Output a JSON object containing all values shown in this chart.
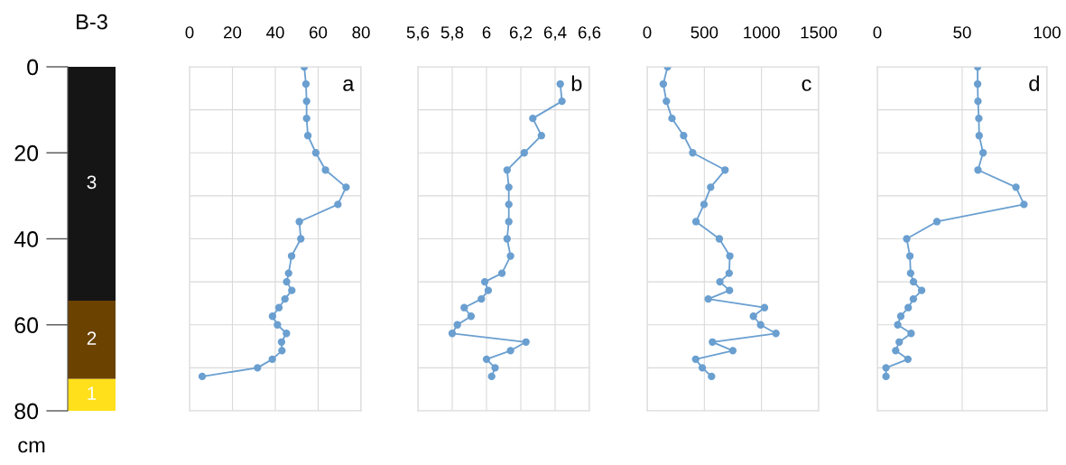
{
  "chart_data": [
    {
      "type": "bar",
      "stacked": true,
      "title": "B-3",
      "ylabel": "cm",
      "categories": [
        null
      ],
      "series": [
        {
          "name": "3",
          "color": "#151515",
          "values": [
            54.4
          ]
        },
        {
          "name": "2",
          "color": "#6b4200",
          "values": [
            18.2
          ]
        },
        {
          "name": "1",
          "color": "#ffe01a",
          "values": [
            7.4
          ]
        }
      ],
      "ylim": [
        80,
        0
      ],
      "yticks": [
        0,
        20,
        40,
        60,
        80
      ],
      "tick_labels": "y",
      "grid": false
    },
    {
      "type": "line",
      "title": "a",
      "marker": "circle",
      "grid": true,
      "tick_labels": "x",
      "xlim": [
        0,
        80
      ],
      "xticks": [
        0,
        20,
        40,
        60,
        80
      ],
      "ylim": [
        80,
        0
      ],
      "yticks": [
        {
          "value": 0,
          "label": null
        },
        {
          "value": 10,
          "label": null
        },
        {
          "value": 20,
          "label": null
        },
        {
          "value": 30,
          "label": null
        },
        {
          "value": 40,
          "label": null
        },
        {
          "value": 50,
          "label": null
        },
        {
          "value": 60,
          "label": null
        },
        {
          "value": 70,
          "label": null
        },
        {
          "value": 80,
          "label": null
        }
      ],
      "series": [
        {
          "color": "#6a9fd0",
          "x": [
            53.5,
            54.3,
            54.6,
            54.6,
            55.2,
            58.9,
            63.4,
            73,
            69.2,
            51.2,
            51.9,
            47.6,
            46.2,
            45.3,
            47.7,
            44.5,
            41.7,
            38.7,
            41,
            45.2,
            42.9,
            43.1,
            38.6,
            31.7,
            5.9
          ],
          "values": [
            0,
            4,
            8,
            12,
            16,
            20,
            24,
            28,
            32,
            36,
            40,
            44,
            48,
            50,
            52,
            54,
            56,
            58,
            60,
            62,
            64,
            66,
            68,
            70,
            72
          ]
        }
      ]
    },
    {
      "type": "line",
      "title": "b",
      "marker": "circle",
      "grid": true,
      "tick_labels": "x",
      "xlim": [
        5.6,
        6.6
      ],
      "xticks": [
        {
          "value": 5.6,
          "label": "5,6"
        },
        {
          "value": 5.8,
          "label": "5,8"
        },
        {
          "value": 6.0,
          "label": "6"
        },
        {
          "value": 6.2,
          "label": "6,2"
        },
        {
          "value": 6.4,
          "label": "6,4"
        },
        {
          "value": 6.6,
          "label": "6,6"
        }
      ],
      "ylim": [
        80,
        0
      ],
      "yticks": [
        {
          "value": 0,
          "label": null
        },
        {
          "value": 10,
          "label": null
        },
        {
          "value": 20,
          "label": null
        },
        {
          "value": 30,
          "label": null
        },
        {
          "value": 40,
          "label": null
        },
        {
          "value": 50,
          "label": null
        },
        {
          "value": 60,
          "label": null
        },
        {
          "value": 70,
          "label": null
        },
        {
          "value": 80,
          "label": null
        }
      ],
      "series": [
        {
          "color": "#6a9fd0",
          "x": [
            6.43,
            6.44,
            6.27,
            6.32,
            6.22,
            6.12,
            6.13,
            6.13,
            6.13,
            6.12,
            6.14,
            6.09,
            5.99,
            6.01,
            5.97,
            5.87,
            5.91,
            5.83,
            5.8,
            6.23,
            6.14,
            6.0,
            6.05,
            6.03
          ],
          "values": [
            4,
            8,
            12,
            16,
            20,
            24,
            28,
            32,
            36,
            40,
            44,
            48,
            50,
            52,
            54,
            56,
            58,
            60,
            62,
            64,
            66,
            68,
            70,
            72
          ]
        }
      ]
    },
    {
      "type": "line",
      "title": "c",
      "marker": "circle",
      "grid": true,
      "tick_labels": "x",
      "xlim": [
        0,
        1500
      ],
      "xticks": [
        0,
        500,
        1000,
        1500
      ],
      "ylim": [
        80,
        0
      ],
      "yticks": [
        {
          "value": 0,
          "label": null
        },
        {
          "value": 10,
          "label": null
        },
        {
          "value": 20,
          "label": null
        },
        {
          "value": 30,
          "label": null
        },
        {
          "value": 40,
          "label": null
        },
        {
          "value": 50,
          "label": null
        },
        {
          "value": 60,
          "label": null
        },
        {
          "value": 70,
          "label": null
        },
        {
          "value": 80,
          "label": null
        }
      ],
      "series": [
        {
          "color": "#6a9fd0",
          "x": [
            178,
            141,
            168,
            217,
            319,
            398,
            681,
            555,
            497,
            427,
            631,
            723,
            717,
            636,
            720,
            534,
            1026,
            929,
            992,
            1126,
            571,
            749,
            424,
            482,
            563
          ],
          "values": [
            0,
            4,
            8,
            12,
            16,
            20,
            24,
            28,
            32,
            36,
            40,
            44,
            48,
            50,
            52,
            54,
            56,
            58,
            60,
            62,
            64,
            66,
            68,
            70,
            72
          ]
        }
      ]
    },
    {
      "type": "line",
      "title": "d",
      "marker": "circle",
      "grid": true,
      "tick_labels": "x",
      "xlim": [
        0,
        100
      ],
      "xticks": [
        0,
        50,
        100
      ],
      "ylim": [
        80,
        0
      ],
      "yticks": [
        {
          "value": 0,
          "label": null
        },
        {
          "value": 10,
          "label": null
        },
        {
          "value": 20,
          "label": null
        },
        {
          "value": 30,
          "label": null
        },
        {
          "value": 40,
          "label": null
        },
        {
          "value": 50,
          "label": null
        },
        {
          "value": 60,
          "label": null
        },
        {
          "value": 70,
          "label": null
        },
        {
          "value": 80,
          "label": null
        }
      ],
      "series": [
        {
          "color": "#6a9fd0",
          "x": [
            59.1,
            59.1,
            59.3,
            59.8,
            60,
            62.3,
            59.3,
            81.7,
            86.4,
            35.1,
            17.3,
            19.2,
            19.6,
            21.3,
            26.1,
            21.2,
            18.2,
            13.8,
            12,
            19.9,
            12.9,
            10.8,
            18,
            5.1,
            5.1
          ],
          "values": [
            0,
            4,
            8,
            12,
            16,
            20,
            24,
            28,
            32,
            36,
            40,
            44,
            48,
            50,
            52,
            54,
            56,
            58,
            60,
            62,
            64,
            66,
            68,
            70,
            72
          ]
        }
      ]
    }
  ]
}
